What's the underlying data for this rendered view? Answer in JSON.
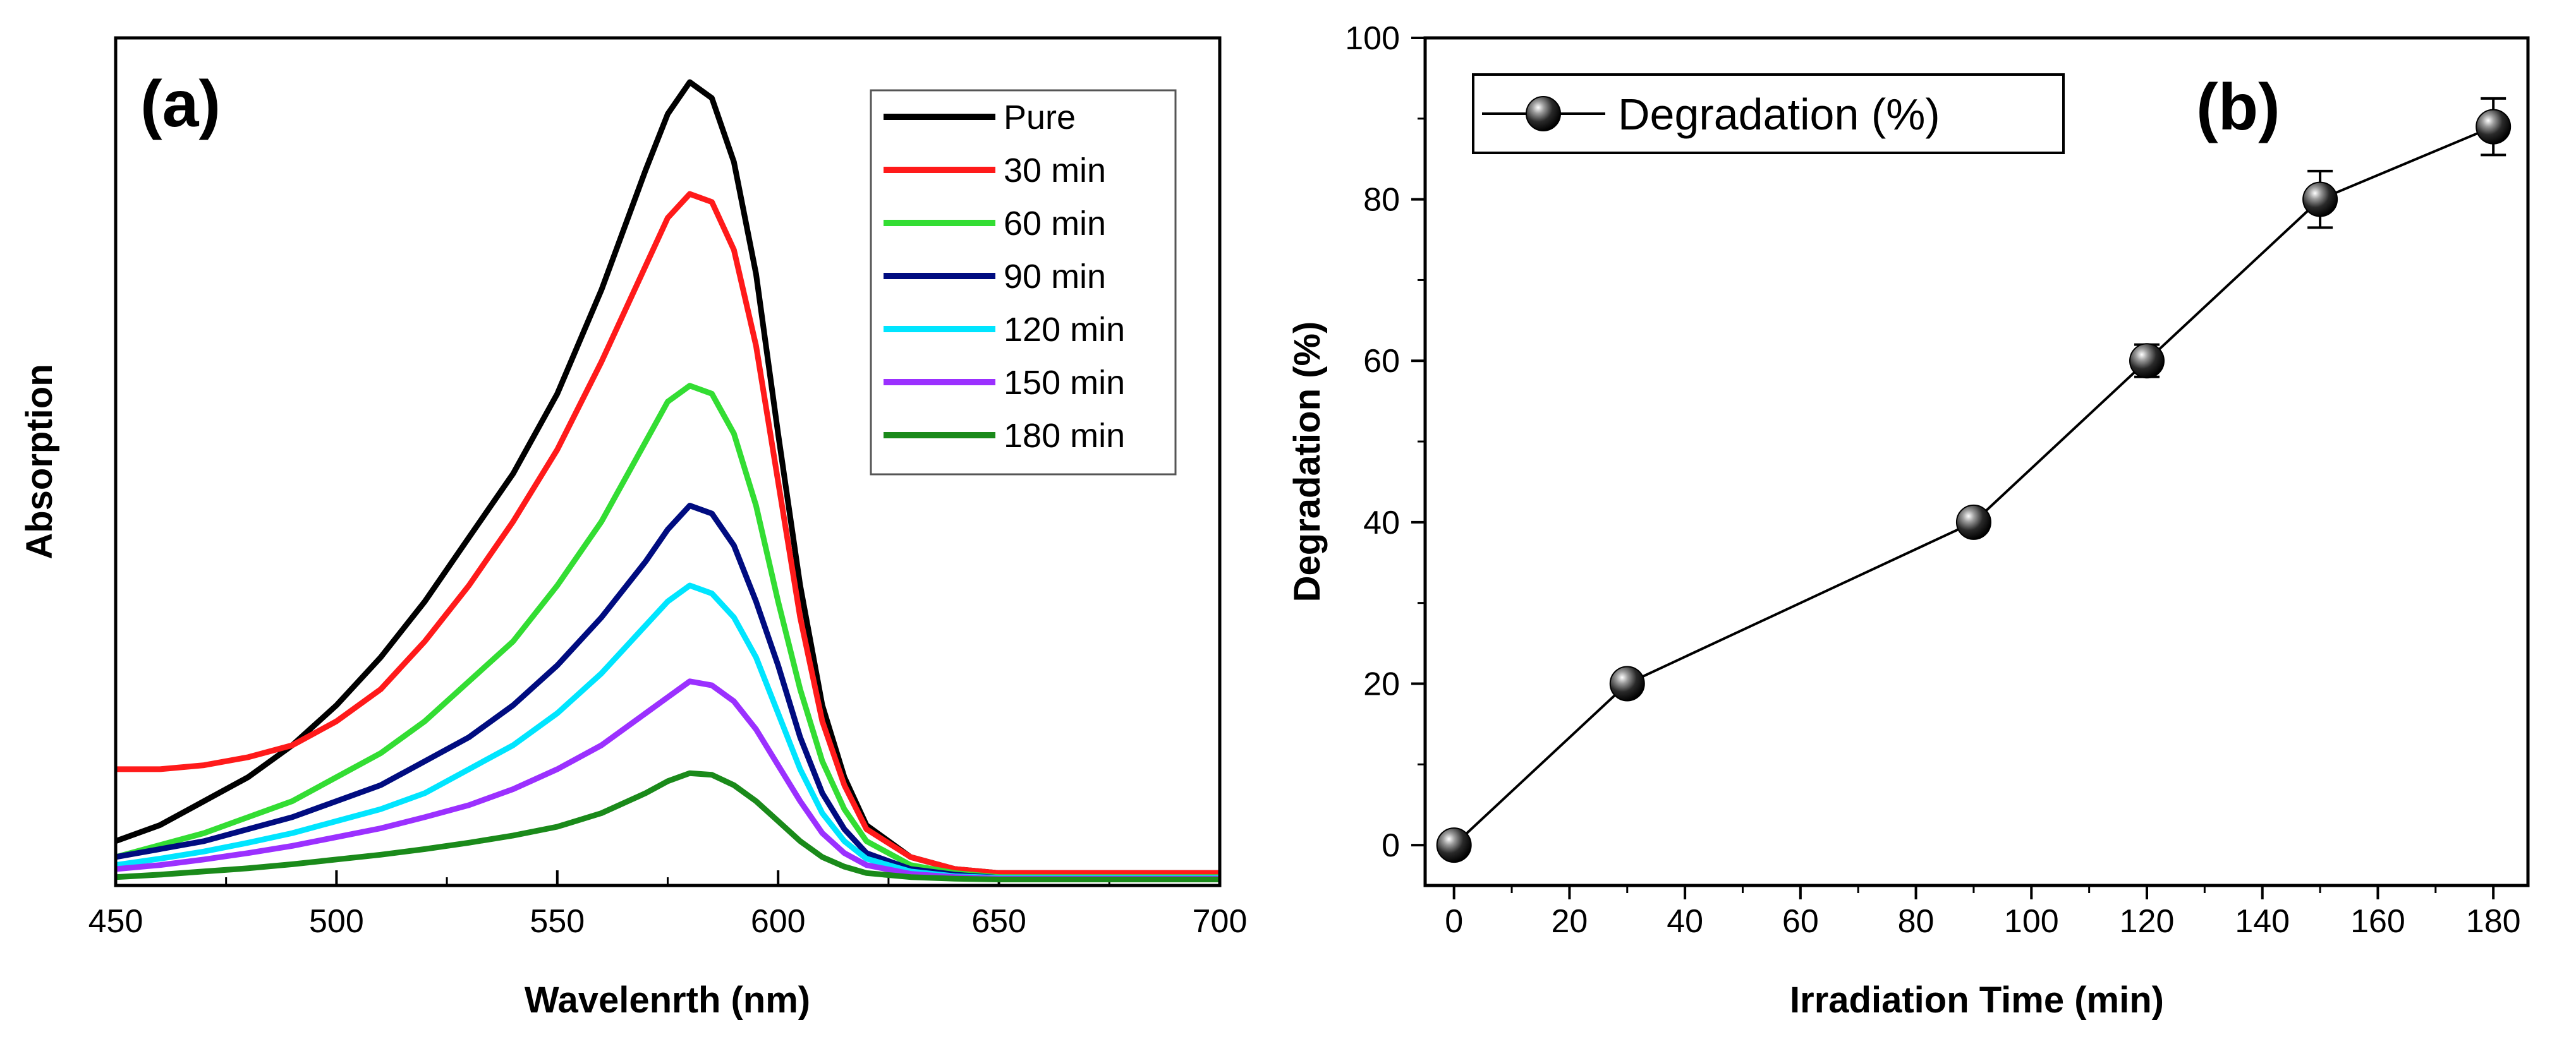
{
  "chart_data": [
    {
      "panel": "(a)",
      "type": "line",
      "xlabel": "Wavelenrth (nm)",
      "ylabel": "Absorption",
      "xlim": [
        450,
        700
      ],
      "ylim": [
        0,
        1.0
      ],
      "xticks": [
        "450",
        "500",
        "550",
        "600",
        "650",
        "700"
      ],
      "legend_position": "top-right",
      "x": [
        450,
        460,
        470,
        480,
        490,
        500,
        510,
        520,
        530,
        540,
        550,
        560,
        570,
        575,
        580,
        585,
        590,
        595,
        600,
        605,
        610,
        615,
        620,
        630,
        640,
        650,
        660,
        670,
        680,
        690,
        700
      ],
      "series": [
        {
          "name": "Pure",
          "color": "#000000",
          "values": [
            0.05,
            0.07,
            0.1,
            0.13,
            0.17,
            0.22,
            0.28,
            0.35,
            0.43,
            0.51,
            0.61,
            0.74,
            0.89,
            0.96,
            1.0,
            0.98,
            0.9,
            0.76,
            0.56,
            0.37,
            0.22,
            0.13,
            0.07,
            0.03,
            0.015,
            0.01,
            0.01,
            0.01,
            0.01,
            0.01,
            0.01
          ]
        },
        {
          "name": "30 min",
          "color": "#ff1a1a",
          "values": [
            0.14,
            0.14,
            0.145,
            0.155,
            0.17,
            0.2,
            0.24,
            0.3,
            0.37,
            0.45,
            0.54,
            0.65,
            0.77,
            0.83,
            0.86,
            0.85,
            0.79,
            0.67,
            0.5,
            0.33,
            0.2,
            0.12,
            0.065,
            0.03,
            0.015,
            0.01,
            0.01,
            0.01,
            0.01,
            0.01,
            0.01
          ]
        },
        {
          "name": "60 min",
          "color": "#33dd33",
          "values": [
            0.03,
            0.045,
            0.06,
            0.08,
            0.1,
            0.13,
            0.16,
            0.2,
            0.25,
            0.3,
            0.37,
            0.45,
            0.55,
            0.6,
            0.62,
            0.61,
            0.56,
            0.47,
            0.35,
            0.24,
            0.15,
            0.09,
            0.05,
            0.02,
            0.01,
            0.005,
            0.005,
            0.005,
            0.005,
            0.005,
            0.005
          ]
        },
        {
          "name": "90 min",
          "color": "#000c80",
          "values": [
            0.03,
            0.04,
            0.05,
            0.065,
            0.08,
            0.1,
            0.12,
            0.15,
            0.18,
            0.22,
            0.27,
            0.33,
            0.4,
            0.44,
            0.47,
            0.46,
            0.42,
            0.35,
            0.27,
            0.18,
            0.11,
            0.065,
            0.035,
            0.015,
            0.008,
            0.004,
            0.004,
            0.004,
            0.004,
            0.004,
            0.004
          ]
        },
        {
          "name": "120 min",
          "color": "#00e5ff",
          "values": [
            0.02,
            0.028,
            0.037,
            0.048,
            0.06,
            0.075,
            0.09,
            0.11,
            0.14,
            0.17,
            0.21,
            0.26,
            0.32,
            0.35,
            0.37,
            0.36,
            0.33,
            0.28,
            0.21,
            0.14,
            0.085,
            0.05,
            0.028,
            0.012,
            0.006,
            0.004,
            0.004,
            0.004,
            0.004,
            0.004,
            0.004
          ]
        },
        {
          "name": "150 min",
          "color": "#9b30ff",
          "values": [
            0.015,
            0.02,
            0.027,
            0.035,
            0.044,
            0.055,
            0.066,
            0.08,
            0.095,
            0.115,
            0.14,
            0.17,
            0.21,
            0.23,
            0.25,
            0.245,
            0.225,
            0.19,
            0.145,
            0.1,
            0.06,
            0.035,
            0.02,
            0.009,
            0.005,
            0.003,
            0.003,
            0.003,
            0.003,
            0.003,
            0.003
          ]
        },
        {
          "name": "180 min",
          "color": "#1a8a1a",
          "values": [
            0.005,
            0.008,
            0.012,
            0.016,
            0.021,
            0.027,
            0.033,
            0.04,
            0.048,
            0.057,
            0.068,
            0.085,
            0.11,
            0.125,
            0.135,
            0.133,
            0.12,
            0.1,
            0.075,
            0.05,
            0.03,
            0.018,
            0.01,
            0.005,
            0.003,
            0.002,
            0.002,
            0.002,
            0.002,
            0.002,
            0.002
          ]
        }
      ]
    },
    {
      "panel": "(b)",
      "type": "line",
      "xlabel": "Irradiation Time (min)",
      "ylabel": "Degradation (%)",
      "xlim": [
        -5,
        186
      ],
      "ylim": [
        -5,
        100
      ],
      "xticks": [
        "0",
        "20",
        "40",
        "60",
        "80",
        "100",
        "120",
        "140",
        "160",
        "180"
      ],
      "yticks": [
        "0",
        "20",
        "40",
        "60",
        "80",
        "100"
      ],
      "legend_position": "top-left",
      "series": [
        {
          "name": "Degradation (%)",
          "x": [
            0,
            30,
            90,
            120,
            150,
            180
          ],
          "values": [
            0,
            20,
            40,
            60,
            80,
            89
          ],
          "errors": [
            0,
            0,
            0,
            2,
            3.5,
            3.5
          ]
        }
      ]
    }
  ]
}
